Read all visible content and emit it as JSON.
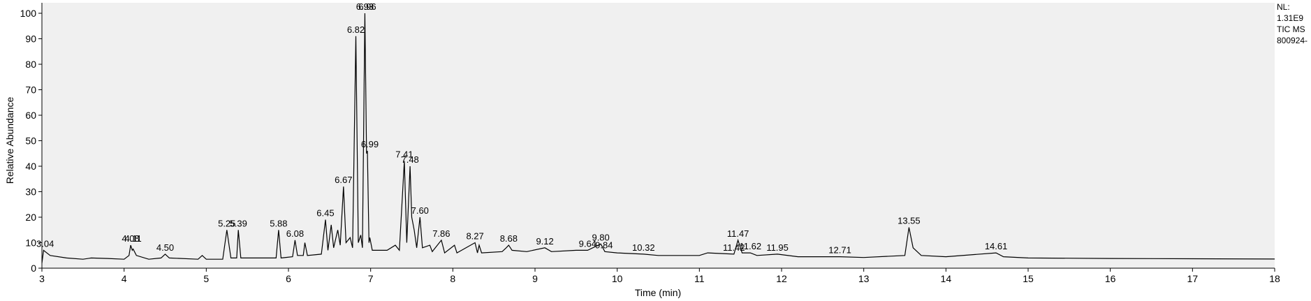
{
  "chart_data": {
    "type": "line",
    "x_label": "Time (min)",
    "y_label": "Relative Abundance",
    "info": [
      "NL:",
      "1.31E9",
      "TIC  MS",
      "800924-"
    ],
    "xlim": [
      3,
      18
    ],
    "xticks": [
      3,
      4,
      5,
      6,
      7,
      8,
      9,
      10,
      11,
      12,
      13,
      14,
      15,
      16,
      17,
      18
    ],
    "ylim": [
      0,
      100
    ],
    "yticks": [
      0,
      10,
      20,
      30,
      40,
      50,
      60,
      70,
      80,
      90,
      100
    ],
    "series": [
      {
        "color": "#000000",
        "x": [
          3.0,
          3.02,
          3.04,
          3.1,
          3.3,
          3.5,
          3.6,
          3.8,
          4.0,
          4.06,
          4.08,
          4.1,
          4.11,
          4.15,
          4.3,
          4.45,
          4.5,
          4.55,
          4.9,
          4.95,
          5.0,
          5.2,
          5.25,
          5.3,
          5.37,
          5.39,
          5.42,
          5.6,
          5.85,
          5.88,
          5.91,
          6.05,
          6.08,
          6.11,
          6.18,
          6.2,
          6.23,
          6.4,
          6.45,
          6.48,
          6.52,
          6.55,
          6.6,
          6.63,
          6.67,
          6.7,
          6.75,
          6.78,
          6.82,
          6.85,
          6.88,
          6.9,
          6.93,
          6.95,
          6.96,
          6.98,
          6.99,
          7.02,
          7.2,
          7.3,
          7.35,
          7.41,
          7.44,
          7.48,
          7.5,
          7.53,
          7.56,
          7.6,
          7.63,
          7.72,
          7.75,
          7.86,
          7.9,
          8.02,
          8.05,
          8.27,
          8.3,
          8.32,
          8.35,
          8.6,
          8.65,
          8.68,
          8.72,
          8.9,
          9.12,
          9.2,
          9.5,
          9.64,
          9.8,
          9.85,
          10.0,
          10.32,
          10.5,
          11.0,
          11.1,
          11.42,
          11.47,
          11.52,
          11.62,
          11.7,
          11.95,
          12.2,
          12.71,
          13.0,
          13.5,
          13.55,
          13.6,
          13.7,
          14.0,
          14.61,
          14.7,
          15.0,
          16.0,
          17.0,
          18.0
        ],
        "values": [
          2,
          7,
          6.5,
          5,
          4,
          3.5,
          4,
          3.8,
          3.5,
          5,
          9,
          7,
          7.5,
          5,
          3.5,
          4,
          5.5,
          4,
          3.5,
          5,
          3.5,
          3.5,
          15,
          4,
          4,
          15,
          4,
          4,
          4,
          15,
          4,
          4.5,
          11,
          5,
          5,
          10,
          5,
          5.5,
          19,
          7,
          17,
          8,
          15,
          9,
          32,
          10,
          12,
          8,
          91,
          10,
          13,
          8,
          100,
          45,
          46,
          10,
          12,
          7,
          7,
          9,
          7,
          42,
          10,
          40,
          20,
          15,
          8,
          20,
          8,
          9,
          6.5,
          11,
          6,
          9,
          6,
          10,
          6,
          9,
          6,
          6.5,
          8,
          9,
          7,
          6.5,
          8,
          6.5,
          7,
          7,
          9.5,
          6.5,
          6,
          5.5,
          5,
          5,
          6,
          5.5,
          11,
          6,
          6,
          5,
          5.5,
          4.5,
          4.5,
          4.2,
          5,
          16,
          8,
          5,
          4.5,
          6,
          4.5,
          4,
          3.8,
          3.7,
          3.6
        ]
      }
    ],
    "annotations": [
      {
        "text": "3.04",
        "x": 3.04
      },
      {
        "text": "4.08",
        "x": 4.08
      },
      {
        "text": "4.11",
        "x": 4.11
      },
      {
        "text": "4.50",
        "x": 4.5
      },
      {
        "text": "5.25",
        "x": 5.25
      },
      {
        "text": "5.39",
        "x": 5.39
      },
      {
        "text": "5.88",
        "x": 5.88
      },
      {
        "text": "6.08",
        "x": 6.08
      },
      {
        "text": "6.45",
        "x": 6.45
      },
      {
        "text": "6.67",
        "x": 6.67
      },
      {
        "text": "6.82",
        "x": 6.82
      },
      {
        "text": "6.93",
        "x": 6.93
      },
      {
        "text": "6.96",
        "x": 6.96
      },
      {
        "text": "6.99",
        "x": 6.99
      },
      {
        "text": "7.41",
        "x": 7.41
      },
      {
        "text": "7.48",
        "x": 7.48
      },
      {
        "text": "7.60",
        "x": 7.6
      },
      {
        "text": "7.86",
        "x": 7.86
      },
      {
        "text": "8.27",
        "x": 8.27
      },
      {
        "text": "8.68",
        "x": 8.68
      },
      {
        "text": "9.12",
        "x": 9.12
      },
      {
        "text": "9.64",
        "x": 9.64
      },
      {
        "text": "9.80",
        "x": 9.8
      },
      {
        "text": "9.84",
        "x": 9.84
      },
      {
        "text": "10.32",
        "x": 10.32
      },
      {
        "text": "11.42",
        "x": 11.42
      },
      {
        "text": "11.47",
        "x": 11.47
      },
      {
        "text": "11.62",
        "x": 11.62
      },
      {
        "text": "11.95",
        "x": 11.95
      },
      {
        "text": "12.71",
        "x": 12.71
      },
      {
        "text": "13.55",
        "x": 13.55
      },
      {
        "text": "14.61",
        "x": 14.61
      }
    ]
  }
}
